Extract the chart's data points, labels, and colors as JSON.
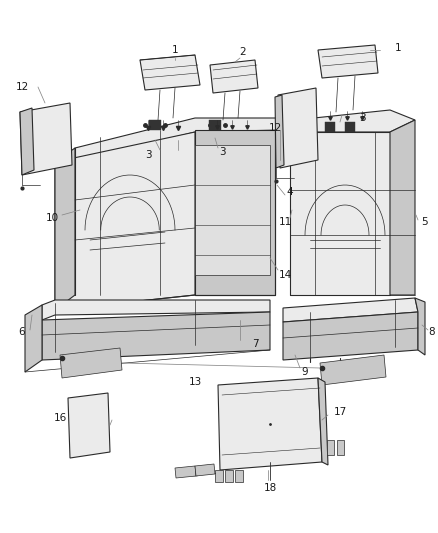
{
  "background_color": "#ffffff",
  "line_color": "#2a2a2a",
  "label_color": "#1a1a1a",
  "leader_color": "#888888",
  "fig_width": 4.38,
  "fig_height": 5.33,
  "dpi": 100,
  "face_color": "#d8d8d8",
  "face_light": "#ebebeb",
  "face_mid": "#c8c8c8"
}
